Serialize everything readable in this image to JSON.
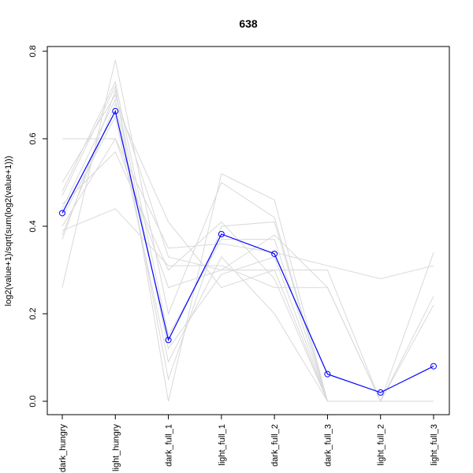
{
  "chart_data": {
    "type": "line",
    "title": "638",
    "ylabel": "log2(value+1)/sqrt(sum(log2(value+1)))",
    "xlabel": "",
    "categories": [
      "dark_hungry",
      "light_hungry",
      "dark_full_1",
      "light_full_1",
      "dark_full_2",
      "dark_full_3",
      "light_full_2",
      "light_full_3"
    ],
    "ylim": [
      0,
      0.8
    ],
    "yticks": [
      "0.0",
      "0.2",
      "0.4",
      "0.6",
      "0.8"
    ],
    "grid": false,
    "highlight_color": "#0000ff",
    "background_color": "#d9d9d9",
    "highlight": {
      "values": [
        0.43,
        0.663,
        0.14,
        0.382,
        0.337,
        0.062,
        0.02,
        0.08
      ]
    },
    "background_series": [
      [
        0.47,
        0.72,
        0.0,
        0.52,
        0.46,
        0.0,
        0.0,
        0.24
      ],
      [
        0.4,
        0.6,
        0.35,
        0.36,
        0.34,
        0.31,
        0.28,
        0.31
      ],
      [
        0.26,
        0.78,
        0.2,
        0.5,
        0.42,
        0.0,
        0.0,
        0.34
      ],
      [
        0.5,
        0.7,
        0.33,
        0.3,
        0.38,
        0.26,
        0.0,
        0.0
      ],
      [
        0.38,
        0.68,
        0.41,
        0.26,
        0.3,
        0.0,
        0.0,
        0.0
      ],
      [
        0.45,
        0.57,
        0.3,
        0.41,
        0.28,
        0.0,
        0.0,
        0.22
      ],
      [
        0.39,
        0.44,
        0.31,
        0.31,
        0.26,
        0.26,
        0.0,
        0.0
      ],
      [
        0.48,
        0.73,
        0.15,
        0.37,
        0.37,
        0.0,
        0.0,
        0.0
      ],
      [
        0.42,
        0.65,
        0.09,
        0.33,
        0.2,
        0.0,
        0.0,
        0.0
      ],
      [
        0.6,
        0.6,
        0.26,
        0.3,
        0.3,
        0.3,
        0.0,
        0.0
      ],
      [
        0.44,
        0.69,
        0.05,
        0.4,
        0.41,
        0.0,
        0.0,
        0.0
      ],
      [
        0.37,
        0.71,
        0.12,
        0.29,
        0.33,
        0.0,
        0.0,
        0.0
      ]
    ]
  }
}
